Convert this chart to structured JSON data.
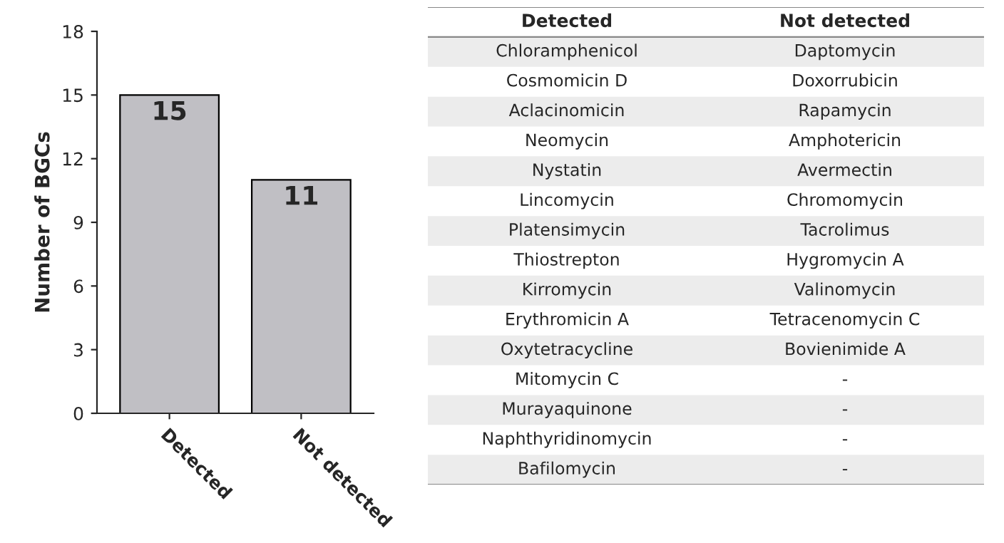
{
  "chart_data": [
    {
      "type": "bar",
      "ylabel": "Number of BGCs",
      "categories": [
        "Detected",
        "Not detected"
      ],
      "values": [
        15,
        11
      ],
      "color": "#c0bfc4",
      "ylim": [
        0,
        18
      ],
      "yticks": [
        0,
        3,
        6,
        9,
        12,
        15,
        18
      ],
      "data_labels": true,
      "grid": false
    },
    {
      "type": "other",
      "categories": [
        "Detected",
        "Not detected"
      ],
      "annotations": [
        "Chloramphenicol",
        "Daptomycin",
        "Cosmomicin D",
        "Doxorrubicin",
        "Aclacinomicin",
        "Rapamycin",
        "Neomycin",
        "Amphotericin",
        "Nystatin",
        "Avermectin",
        "Lincomycin",
        "Chromomycin",
        "Platensimycin",
        "Tacrolimus",
        "Thiostrepton",
        "Hygromycin A",
        "Kirromycin",
        "Valinomycin",
        "Erythromicin A",
        "Tetracenomycin C",
        "Oxytetracycline",
        "Bovienimide A",
        "Mitomycin C",
        "-",
        "Murayaquinone",
        "-",
        "Naphthyridinomycin",
        "-",
        "Bafilomycin",
        "-"
      ]
    }
  ]
}
